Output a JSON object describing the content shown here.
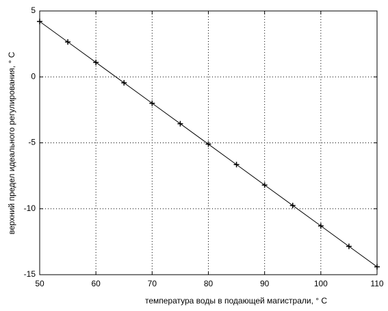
{
  "chart_data": {
    "type": "line",
    "xlabel": "температура воды в подающей магистрали, ° C",
    "ylabel": "верхний предел идеального регулирования, ° C",
    "x": [
      50,
      55,
      60,
      65,
      70,
      75,
      80,
      85,
      90,
      95,
      100,
      105,
      110
    ],
    "series": [
      {
        "color": "#000000",
        "marker": "+",
        "values": [
          4.2,
          2.65,
          1.1,
          -0.45,
          -2.0,
          -3.55,
          -5.1,
          -6.65,
          -8.2,
          -9.75,
          -11.3,
          -12.85,
          -14.4
        ]
      }
    ],
    "xlim": [
      50,
      110
    ],
    "ylim": [
      -15,
      5
    ],
    "xticks": [
      50,
      60,
      70,
      80,
      90,
      100,
      110
    ],
    "yticks": [
      -15,
      -10,
      -5,
      0,
      5
    ],
    "grid": true
  }
}
